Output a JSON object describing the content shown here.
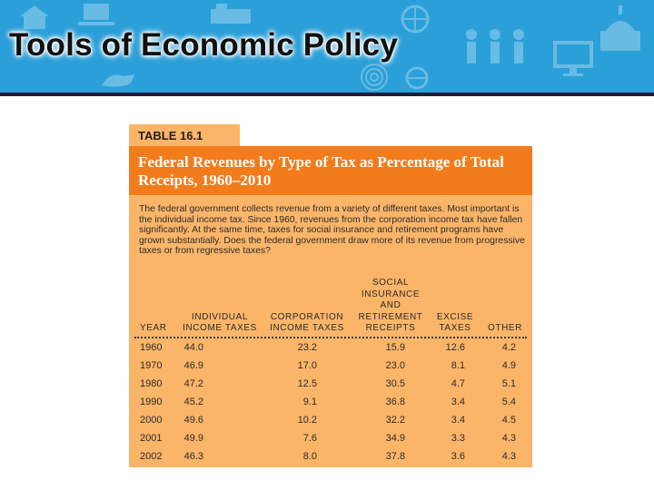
{
  "slide": {
    "title": "Tools of Economic Policy"
  },
  "table": {
    "label": "TABLE 16.1",
    "heading": "Federal Revenues by Type of Tax as Percentage of Total Receipts, 1960–2010",
    "intro": "The federal government collects revenue from a variety of different taxes. Most important is the individual income tax. Since 1960, revenues from the corporation income tax have fallen significantly. At the same time, taxes for social insurance and retirement programs have grown substantially. Does the federal government draw more of its revenue from progressive taxes or from regressive taxes?",
    "columns": [
      "YEAR",
      "INDIVIDUAL\nINCOME TAXES",
      "CORPORATION\nINCOME TAXES",
      "SOCIAL\nINSURANCE\nAND\nRETIREMENT\nRECEIPTS",
      "EXCISE\nTAXES",
      "OTHER"
    ],
    "rows": [
      [
        "1960",
        "44.0",
        "23.2",
        "15.9",
        "12.6",
        "4.2"
      ],
      [
        "1970",
        "46.9",
        "17.0",
        "23.0",
        "8.1",
        "4.9"
      ],
      [
        "1980",
        "47.2",
        "12.5",
        "30.5",
        "4.7",
        "5.1"
      ],
      [
        "1990",
        "45.2",
        "9.1",
        "36.8",
        "3.4",
        "5.4"
      ],
      [
        "2000",
        "49.6",
        "10.2",
        "32.2",
        "3.4",
        "4.5"
      ],
      [
        "2001",
        "49.9",
        "7.6",
        "34.9",
        "3.3",
        "4.3"
      ],
      [
        "2002",
        "46.3",
        "8.0",
        "37.8",
        "3.6",
        "4.3"
      ]
    ]
  },
  "colors": {
    "banner_blue": "#2a9fd8",
    "header_orange": "#f27c1b",
    "table_bg": "#fbb569"
  },
  "decorative_icons": [
    "house-icon",
    "laptop-icon",
    "people-icon",
    "globe-icon",
    "capitol-icon",
    "monitor-icon",
    "fingerprint-icon",
    "hand-icon"
  ]
}
